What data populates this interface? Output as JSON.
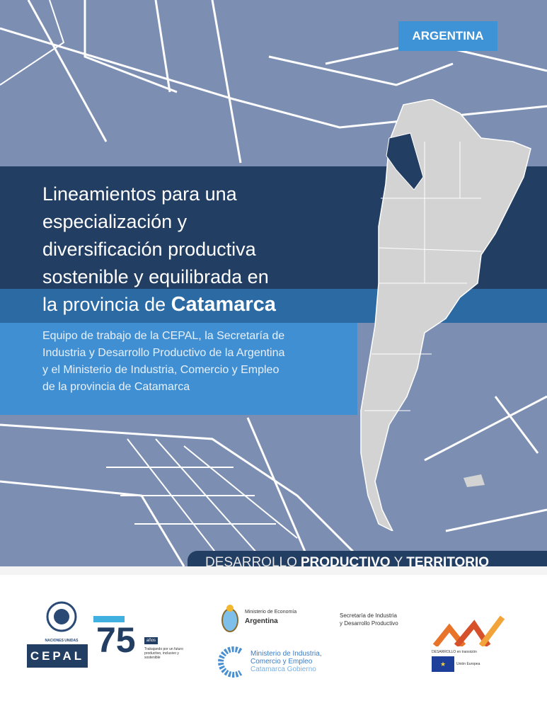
{
  "badge": "ARGENTINA",
  "title": {
    "line1": "Lineamientos para una",
    "line2": "especialización y",
    "line3": "diversificación productiva",
    "line4": "sostenible y equilibrada en",
    "line5_prefix": "la provincia de ",
    "line5_bold": "Catamarca"
  },
  "subtitle": {
    "line1": "Equipo de trabajo de la CEPAL, la Secretaría de",
    "line2": "Industria y Desarrollo Productivo de la Argentina",
    "line3": "y el Ministerio de Industria, Comercio y Empleo",
    "line4": "de la provincia de Catamarca"
  },
  "series": {
    "part1": "DESARROLLO",
    "part2": "PRODUCTIVO",
    "part3": "Y",
    "part4": "TERRITORIO"
  },
  "logos": {
    "un": "NACIONES UNIDAS",
    "cepal": "CEPAL",
    "anniversary": {
      "number": "75",
      "badge": "años",
      "text": "Trabajando por un futuro productivo, inclusivo y sostenible"
    },
    "ministerio_economia": {
      "line1": "Ministerio de Economía",
      "line2": "Argentina"
    },
    "secretaria": {
      "line1": "Secretaría de Industria",
      "line2": "y Desarrollo Productivo"
    },
    "catamarca": {
      "line1": "Ministerio de Industria,",
      "line2": "Comercio y Empleo",
      "line3": "Catamarca Gobierno"
    },
    "desarrollo_transicion": {
      "line1": "DESARROLLO en transición",
      "line2": "Unión Europea"
    }
  },
  "colors": {
    "cover": "#7c8fb2",
    "navy": "#223e63",
    "mid_blue": "#2c6aa3",
    "light_blue": "#3f8fd2",
    "map_fill": "#d3d3d3",
    "highlight": "#223e63"
  }
}
